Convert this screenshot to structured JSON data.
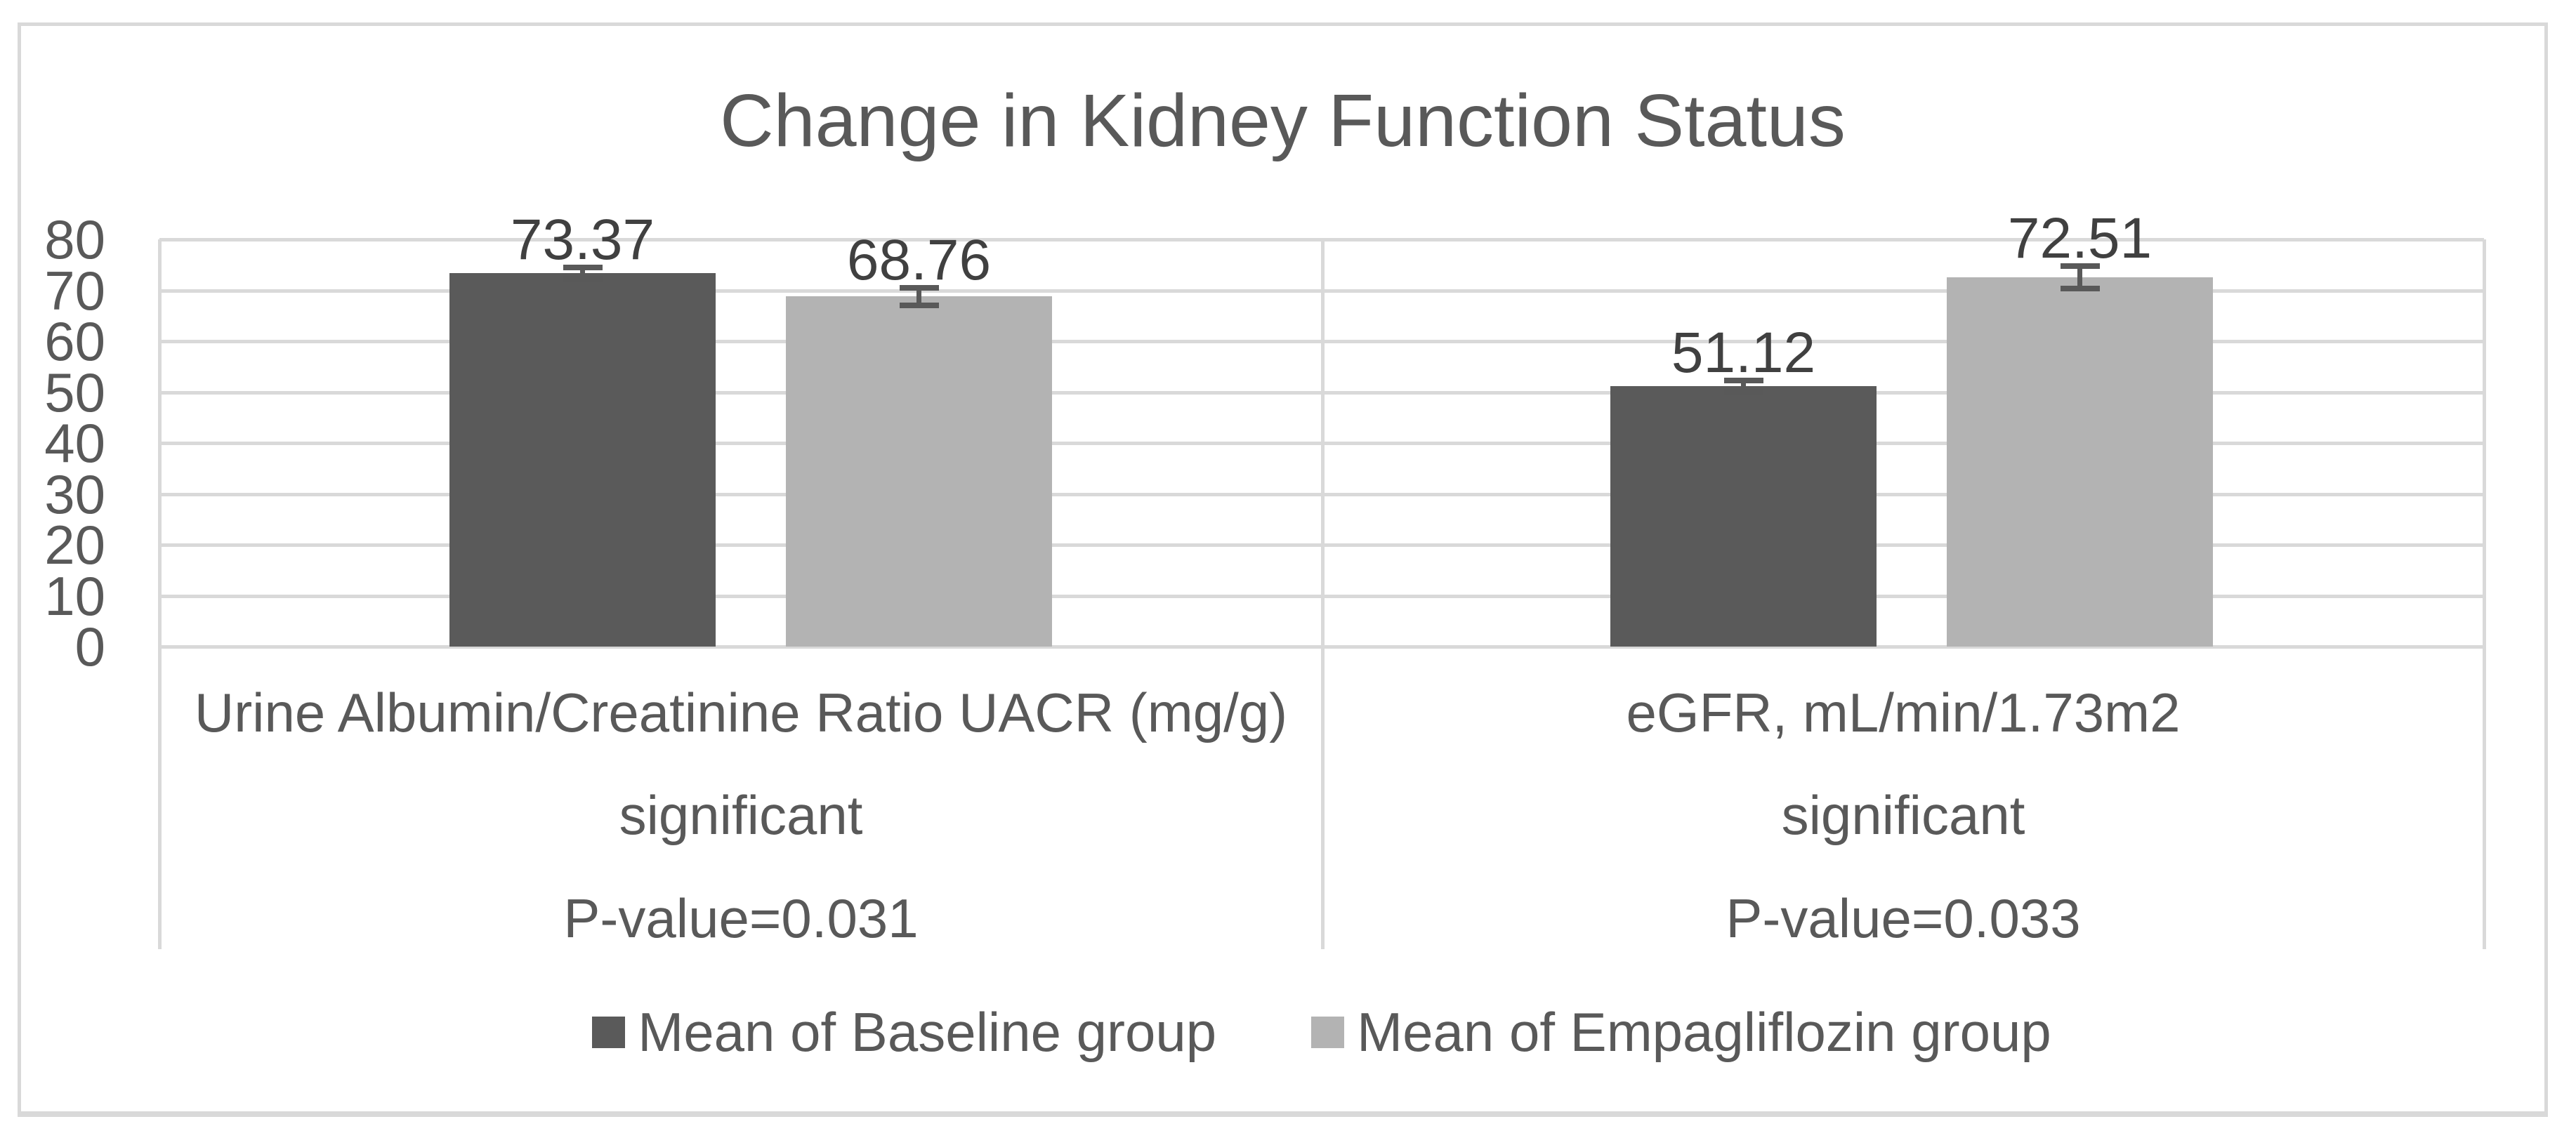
{
  "title": "Change in Kidney Function Status",
  "colors": {
    "baseline_series": "#5a5a5a",
    "empagliflozin_series": "#b3b3b3",
    "gridline": "#d9d9d9",
    "frame_border": "#d9d9d9",
    "title_text": "#595959",
    "axis_text": "#595959",
    "data_label_text": "#404040",
    "error_bar": "#595959"
  },
  "chart_data": {
    "type": "bar",
    "title": "Change in Kidney Function Status",
    "categories": [
      {
        "label": "Urine Albumin/Creatinine Ratio UACR (mg/g)",
        "significance": "significant",
        "p_value": "P-value=0.031"
      },
      {
        "label": "eGFR, mL/min/1.73m2",
        "significance": "significant",
        "p_value": "P-value=0.033"
      }
    ],
    "series": [
      {
        "name": "Mean of Baseline group",
        "color": "#5a5a5a",
        "values": [
          73.37,
          51.12
        ],
        "labels": [
          "73.37",
          "51.12"
        ],
        "errors": [
          1.1,
          1.1
        ]
      },
      {
        "name": "Mean of Empagliflozin group",
        "color": "#b3b3b3",
        "values": [
          68.76,
          72.51
        ],
        "labels": [
          "68.76",
          "72.51"
        ],
        "errors": [
          1.7,
          2.2
        ]
      }
    ],
    "yticks": [
      0,
      10,
      20,
      30,
      40,
      50,
      60,
      70,
      80
    ],
    "ylim": [
      0,
      80
    ],
    "xlabel": "",
    "ylabel": "",
    "grid": "horizontal",
    "legend_position": "bottom",
    "error_bars": true
  },
  "legend": {
    "items": [
      {
        "label": "Mean of Baseline group",
        "color": "#5a5a5a"
      },
      {
        "label": "Mean of Empagliflozin group",
        "color": "#b3b3b3"
      }
    ]
  }
}
